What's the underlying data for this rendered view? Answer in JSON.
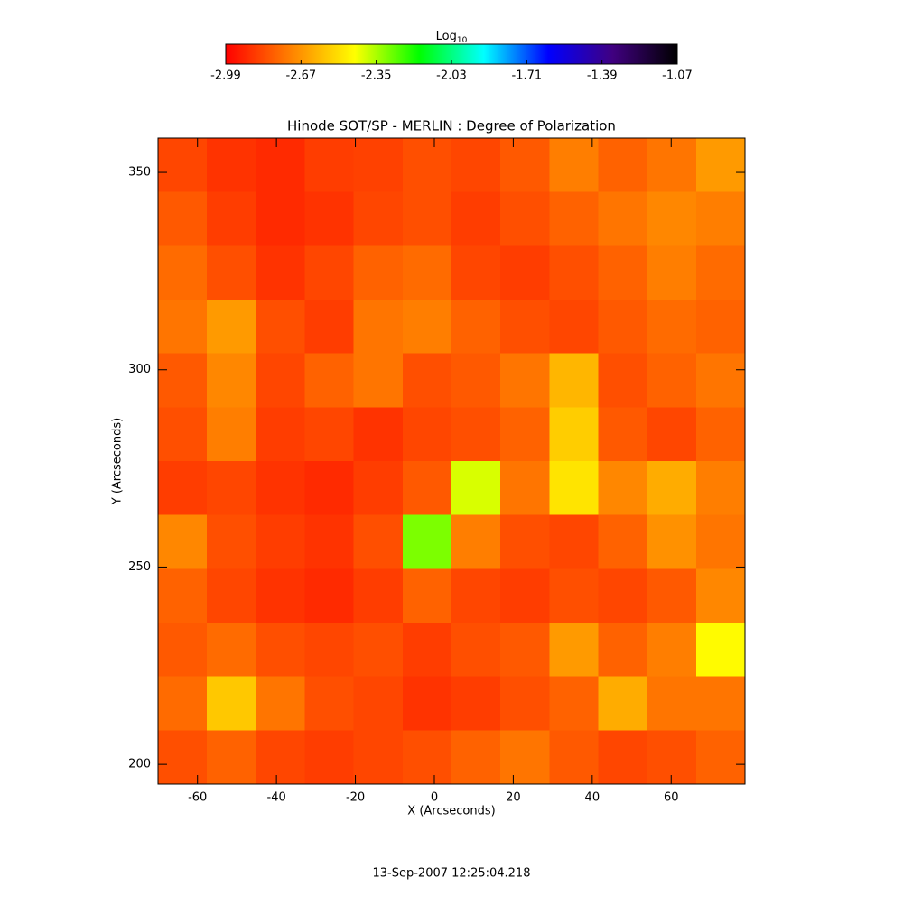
{
  "chart_data": {
    "type": "heatmap",
    "title": "Hinode SOT/SP - MERLIN : Degree of Polarization",
    "x_label": "X (Arcseconds)",
    "y_label": "Y (Arcseconds)",
    "footer": "13-Sep-2007 12:25:04.218",
    "colorbar_label": "Log",
    "colorbar_label_sub": "10",
    "colorbar_lim": [
      -2.99,
      -1.07
    ],
    "colorbar_ticks": [
      -2.99,
      -2.67,
      -2.35,
      -2.03,
      -1.71,
      -1.39,
      -1.07
    ],
    "colormap": [
      "#ff0000",
      "#ff8000",
      "#ffff00",
      "#00ff00",
      "#00ffff",
      "#0000ff",
      "#400080",
      "#000000"
    ],
    "xlim": [
      -70,
      78.7
    ],
    "ylim": [
      195,
      358.7
    ],
    "xticks": [
      -60,
      -40,
      -20,
      0,
      20,
      40,
      60
    ],
    "yticks": [
      200,
      250,
      300,
      350
    ],
    "z": [
      [
        -2.84,
        -2.88,
        -2.9,
        -2.86,
        -2.85,
        -2.82,
        -2.84,
        -2.8,
        -2.72,
        -2.78,
        -2.74,
        -2.66
      ],
      [
        -2.8,
        -2.86,
        -2.9,
        -2.88,
        -2.84,
        -2.82,
        -2.86,
        -2.82,
        -2.78,
        -2.74,
        -2.7,
        -2.72
      ],
      [
        -2.76,
        -2.82,
        -2.88,
        -2.84,
        -2.78,
        -2.76,
        -2.84,
        -2.86,
        -2.82,
        -2.78,
        -2.72,
        -2.76
      ],
      [
        -2.74,
        -2.66,
        -2.82,
        -2.86,
        -2.74,
        -2.72,
        -2.78,
        -2.82,
        -2.84,
        -2.8,
        -2.76,
        -2.78
      ],
      [
        -2.8,
        -2.7,
        -2.84,
        -2.78,
        -2.74,
        -2.82,
        -2.8,
        -2.74,
        -2.6,
        -2.82,
        -2.78,
        -2.74
      ],
      [
        -2.82,
        -2.72,
        -2.86,
        -2.84,
        -2.88,
        -2.84,
        -2.82,
        -2.78,
        -2.55,
        -2.8,
        -2.84,
        -2.78
      ],
      [
        -2.86,
        -2.84,
        -2.88,
        -2.9,
        -2.86,
        -2.8,
        -2.4,
        -2.74,
        -2.5,
        -2.7,
        -2.62,
        -2.72
      ],
      [
        -2.7,
        -2.82,
        -2.86,
        -2.88,
        -2.82,
        -2.3,
        -2.72,
        -2.82,
        -2.84,
        -2.78,
        -2.68,
        -2.74
      ],
      [
        -2.78,
        -2.84,
        -2.88,
        -2.9,
        -2.86,
        -2.78,
        -2.84,
        -2.86,
        -2.82,
        -2.84,
        -2.8,
        -2.7
      ],
      [
        -2.8,
        -2.76,
        -2.82,
        -2.84,
        -2.82,
        -2.86,
        -2.82,
        -2.8,
        -2.66,
        -2.78,
        -2.72,
        -2.45
      ],
      [
        -2.76,
        -2.56,
        -2.74,
        -2.82,
        -2.84,
        -2.88,
        -2.86,
        -2.82,
        -2.78,
        -2.62,
        -2.74,
        -2.74
      ],
      [
        -2.82,
        -2.78,
        -2.84,
        -2.86,
        -2.84,
        -2.82,
        -2.78,
        -2.74,
        -2.8,
        -2.84,
        -2.82,
        -2.78
      ]
    ]
  }
}
